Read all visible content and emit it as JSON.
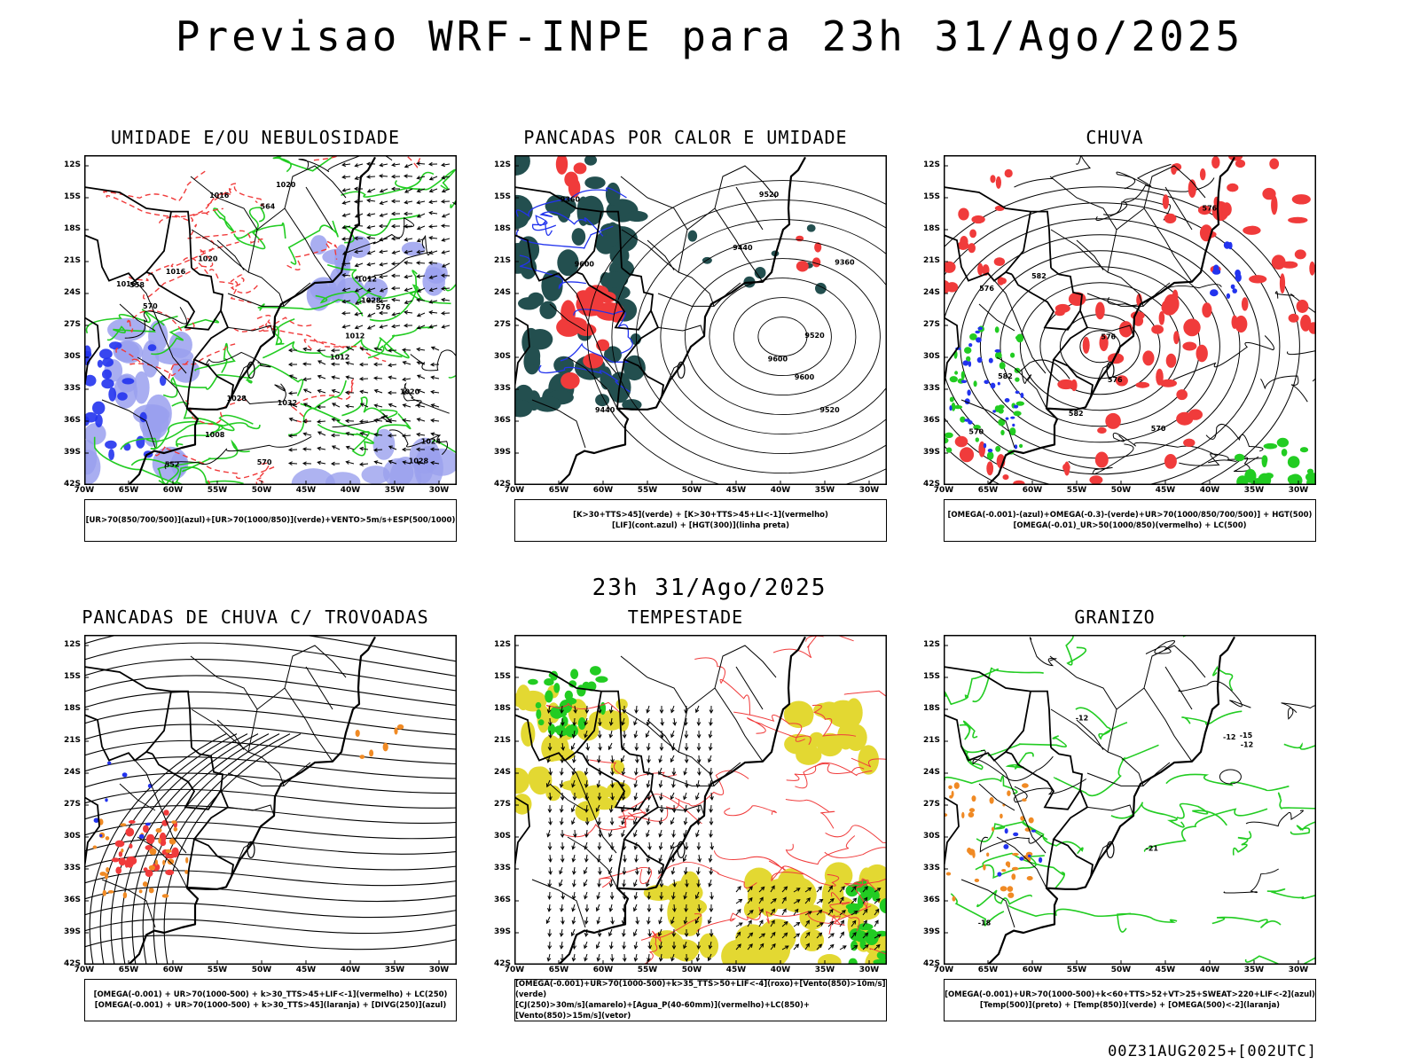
{
  "header": {
    "title": "Previsao WRF-INPE  para 23h 31/Ago/2025"
  },
  "subtitle": "23h 31/Ago/2025",
  "footer": "00Z31AUG2025+[002UTC]",
  "axes": {
    "lat_labels": [
      "12S",
      "15S",
      "18S",
      "21S",
      "24S",
      "27S",
      "30S",
      "33S",
      "36S",
      "39S",
      "42S"
    ],
    "lon_labels": [
      "70W",
      "65W",
      "60W",
      "55W",
      "50W",
      "45W",
      "40W",
      "35W",
      "30W"
    ]
  },
  "colors": {
    "red": "#f03b3b",
    "green": "#22cc22",
    "blue": "#2233ee",
    "lavender": "#9aa0ee",
    "teal": "#234f4f",
    "yellow": "#e3d832",
    "orange": "#f08a24"
  },
  "panels": [
    {
      "title": "UMIDADE E/OU NEBULOSIDADE",
      "legend": [
        "[UR>70(850/700/500)](azul)+[UR>70(1000/850)](verde)+VENTO>5m/s+ESP(500/1000)"
      ],
      "contour_labels": [
        "1012",
        "1016",
        "1008",
        "1012",
        "1016",
        "1020",
        "1012",
        "1016",
        "1020",
        "1024",
        "1028",
        "1028",
        "1020",
        "1032",
        "1028",
        "576",
        "570",
        "552",
        "558",
        "564",
        "570"
      ]
    },
    {
      "title": "PANCADAS POR CALOR E UMIDADE",
      "legend": [
        "[K>30+TTS>45](verde) + [K>30+TTS>45+LI<-1](vermelho)",
        "[LIF](cont.azul) + [HGT(300)](linha preta)"
      ],
      "contour_labels": [
        "9600",
        "9520",
        "9600",
        "9600",
        "9520",
        "9440",
        "9360",
        "9520",
        "9440",
        "9360"
      ]
    },
    {
      "title": "CHUVA",
      "legend": [
        "[OMEGA(-0.001)-(azul)+OMEGA(-0.3)-(verde)+UR>70(1000/850/700/500)] + HGT(500)",
        "[OMEGA(-0.01)_UR>50(1000/850)(vermelho) + LC(500)"
      ],
      "contour_labels": [
        "582",
        "576",
        "582",
        "576",
        "570",
        "576",
        "582",
        "576",
        "570"
      ]
    },
    {
      "title": "PANCADAS DE CHUVA C/ TROVOADAS",
      "legend": [
        "[OMEGA(-0.001) + UR>70(1000-500) + k>30_TTS>45+LIF<-1](vermelho) + LC(250)",
        "[OMEGA(-0.001) + UR>70(1000-500) + k>30_TTS>45](laranja) + [DIVG(250)](azul)"
      ],
      "contour_labels": []
    },
    {
      "title": "TEMPESTADE",
      "legend": [
        "[OMEGA(-0.001)+UR>70(1000-500)+k>35_TTS>50+LIF<-4](roxo)+[Vento(850)>10m/s](verde)",
        "[CJ(250)>30m/s](amarelo)+[Agua_P(40-60mm)](vermelho)+LC(850)+[Vento(850)>15m/s](vetor)"
      ],
      "contour_labels": []
    },
    {
      "title": "GRANIZO",
      "legend": [
        "[OMEGA(-0.001)+UR>70(1000-500)+k<60+TTS>52+VT>25+SWEAT>220+LIF<-2](azul)",
        "[Temp(500)](preto) + [Temp(850)](verde) + [OMEGA(500)<-2](laranja)"
      ],
      "contour_labels": [
        "-12",
        "-12",
        "-12",
        "-15",
        "-18",
        "-21"
      ]
    }
  ]
}
